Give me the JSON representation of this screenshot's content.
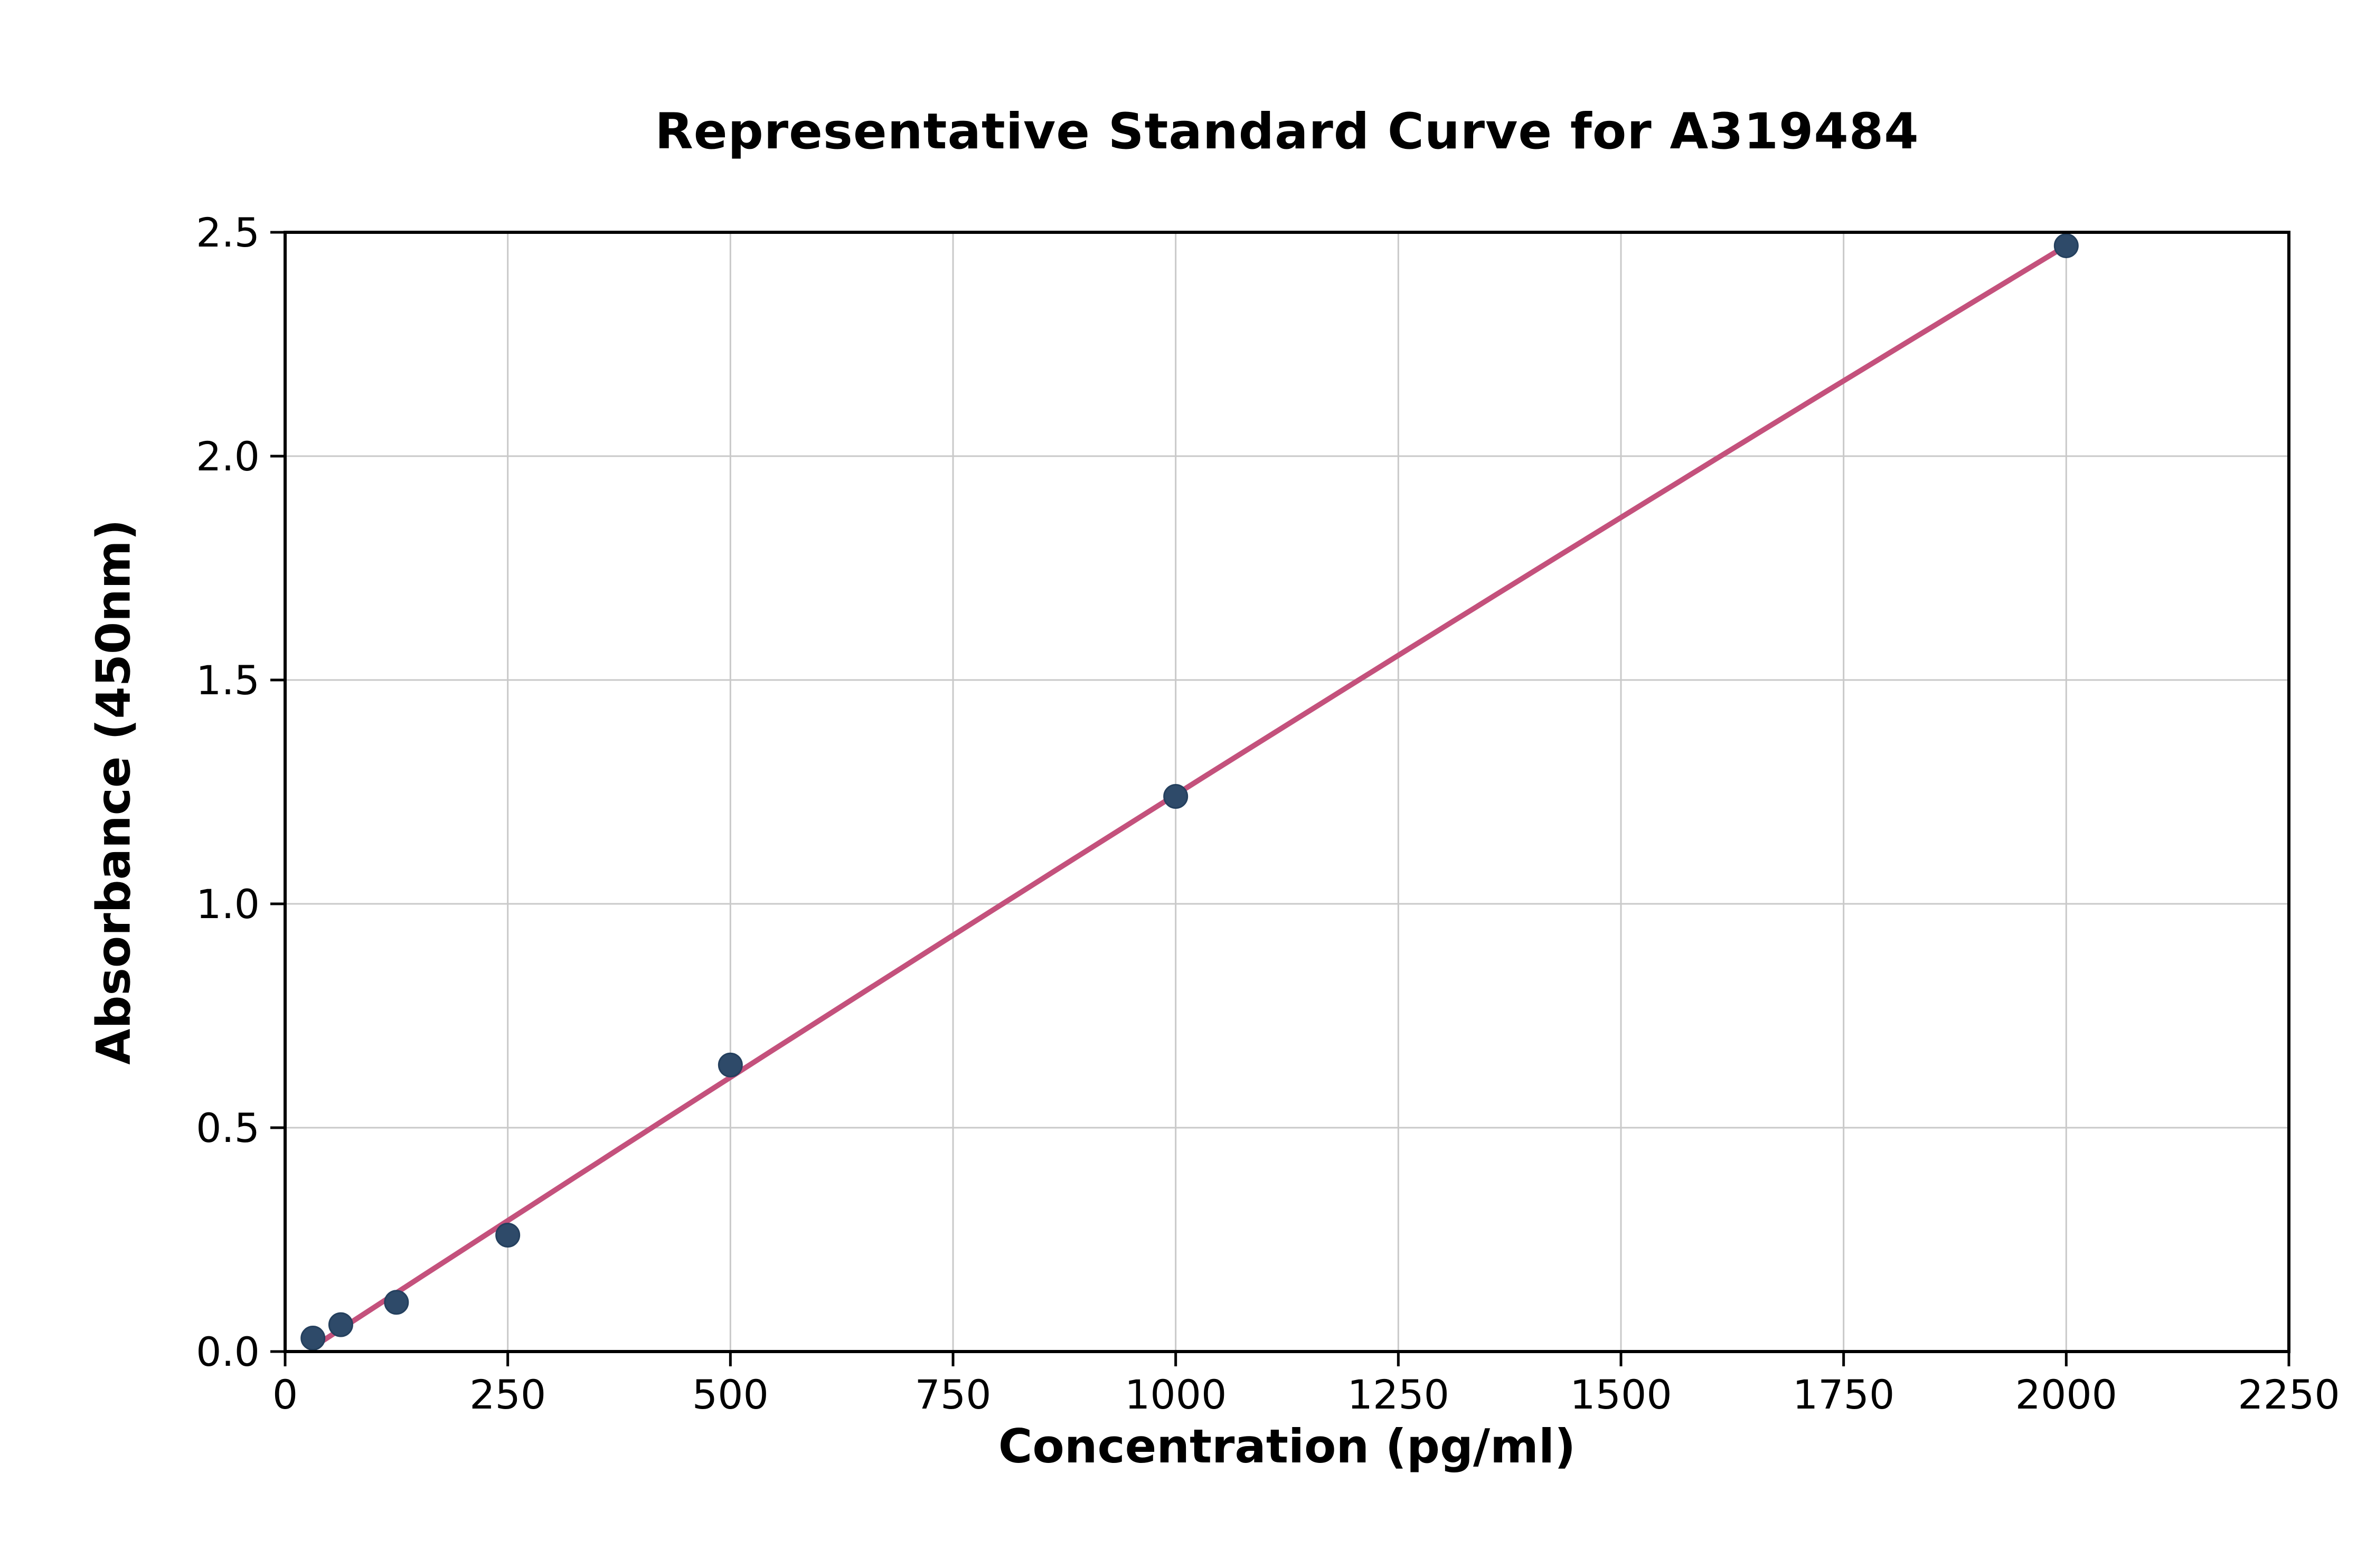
{
  "chart_data": {
    "type": "scatter",
    "title": "Representative Standard Curve for A319484",
    "xlabel": "Concentration (pg/ml)",
    "ylabel": "Absorbance (450nm)",
    "xlim": [
      0,
      2250
    ],
    "ylim": [
      0,
      2.5
    ],
    "xticks": [
      0,
      250,
      500,
      750,
      1000,
      1250,
      1500,
      1750,
      2000,
      2250
    ],
    "xtick_labels": [
      "0",
      "250",
      "500",
      "750",
      "1000",
      "1250",
      "1500",
      "1750",
      "2000",
      "2250"
    ],
    "yticks": [
      0,
      0.5,
      1.0,
      1.5,
      2.0,
      2.5
    ],
    "ytick_labels": [
      "0.0",
      "0.5",
      "1.0",
      "1.5",
      "2.0",
      "2.5"
    ],
    "grid": true,
    "legend": "none",
    "x": [
      31.25,
      62.5,
      125,
      250,
      500,
      1000,
      2000
    ],
    "y": [
      0.03,
      0.06,
      0.11,
      0.26,
      0.64,
      1.24,
      2.47
    ],
    "fit": "quadratic",
    "colors": {
      "point_fill": "#2e4a69",
      "point_edge": "#24405e",
      "fit_line": "#c4517c",
      "grid_line": "#c9c9c9",
      "axis_box": "#000000",
      "background": "#ffffff"
    }
  }
}
